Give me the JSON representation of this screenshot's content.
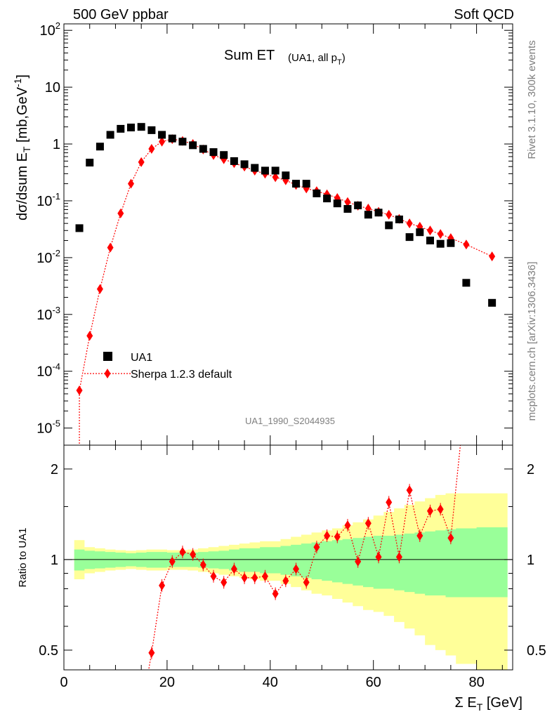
{
  "header": {
    "left": "500 GeV ppbar",
    "right": "Soft QCD"
  },
  "side": {
    "rivet": "Rivet 3.1.10,  300k events",
    "mcplots": "mcplots.cern.ch [arXiv:1306.3436]"
  },
  "analysis_id": "UA1_1990_S2044935",
  "chart_data": [
    {
      "type": "scatter",
      "title": "Sum ET",
      "subtitle": "(UA1, all p_T)",
      "ylabel": "dσ/dsum E_T [mb,GeV^-1]",
      "xlabel": "Σ E_T [GeV]",
      "yscale": "log",
      "xlim": [
        0,
        87
      ],
      "ylim": [
        5e-06,
        130
      ],
      "x_ticks": [
        0,
        20,
        40,
        60,
        80
      ],
      "y_ticks": [
        1e-05,
        0.0001,
        0.001,
        0.01,
        0.1,
        1,
        10,
        100
      ],
      "y_tick_labels": [
        "10^-5",
        "10^-4",
        "10^-3",
        "10^-2",
        "10^-1",
        "1",
        "10",
        "10^2"
      ],
      "legend": {
        "position": "bottom-left",
        "entries": [
          "UA1",
          "Sherpa 1.2.3 default"
        ]
      },
      "series": [
        {
          "name": "UA1",
          "marker": "square",
          "color": "#000000",
          "x": [
            3,
            5,
            7,
            9,
            11,
            13,
            15,
            17,
            19,
            21,
            23,
            25,
            27,
            29,
            31,
            33,
            35,
            37,
            39,
            41,
            43,
            45,
            47,
            49,
            51,
            53,
            55,
            57,
            59,
            61,
            63,
            65,
            67,
            69,
            71,
            73,
            75,
            78,
            83
          ],
          "y": [
            0.033,
            0.47,
            0.9,
            1.45,
            1.85,
            1.95,
            2.0,
            1.75,
            1.45,
            1.25,
            1.1,
            0.95,
            0.82,
            0.72,
            0.64,
            0.5,
            0.44,
            0.38,
            0.34,
            0.34,
            0.28,
            0.2,
            0.2,
            0.135,
            0.11,
            0.09,
            0.072,
            0.083,
            0.057,
            0.062,
            0.037,
            0.047,
            0.023,
            0.028,
            0.02,
            0.0175,
            0.018,
            0.0036,
            0.0016
          ]
        },
        {
          "name": "Sherpa 1.2.3 default",
          "marker": "diamond",
          "color": "#ff0000",
          "line": "dotted",
          "x": [
            3,
            5,
            7,
            9,
            11,
            13,
            15,
            17,
            19,
            21,
            23,
            25,
            27,
            29,
            31,
            33,
            35,
            37,
            39,
            41,
            43,
            45,
            47,
            49,
            51,
            53,
            55,
            57,
            59,
            61,
            63,
            65,
            67,
            69,
            71,
            73,
            75,
            78,
            83
          ],
          "y": [
            4.6e-05,
            0.00042,
            0.0028,
            0.015,
            0.06,
            0.2,
            0.48,
            0.82,
            1.1,
            1.22,
            1.13,
            1.0,
            0.8,
            0.64,
            0.54,
            0.46,
            0.4,
            0.34,
            0.3,
            0.26,
            0.23,
            0.19,
            0.165,
            0.148,
            0.13,
            0.112,
            0.095,
            0.082,
            0.073,
            0.064,
            0.057,
            0.048,
            0.04,
            0.035,
            0.03,
            0.026,
            0.022,
            0.017,
            0.0105
          ]
        }
      ]
    },
    {
      "type": "scatter",
      "ylabel": "Ratio to UA1",
      "xlabel": "Σ E_T [GeV]",
      "yscale": "log",
      "xlim": [
        0,
        87
      ],
      "ylim": [
        0.43,
        2.4
      ],
      "x_ticks": [
        0,
        20,
        40,
        60,
        80
      ],
      "y_ticks": [
        0.5,
        1,
        2
      ],
      "y_tick_labels": [
        "0.5",
        "1",
        "2"
      ],
      "reference_line": 1,
      "bands": {
        "edges": [
          2,
          4,
          6,
          8,
          10,
          12,
          14,
          16,
          18,
          20,
          22,
          24,
          26,
          28,
          30,
          32,
          34,
          36,
          38,
          40,
          42,
          44,
          46,
          48,
          50,
          52,
          54,
          56,
          58,
          60,
          62,
          64,
          66,
          68,
          70,
          72,
          74,
          76,
          80,
          86
        ],
        "green_lo": [
          0.92,
          0.93,
          0.935,
          0.94,
          0.945,
          0.95,
          0.945,
          0.94,
          0.94,
          0.945,
          0.945,
          0.945,
          0.94,
          0.935,
          0.93,
          0.92,
          0.91,
          0.91,
          0.9,
          0.9,
          0.89,
          0.88,
          0.87,
          0.86,
          0.85,
          0.84,
          0.83,
          0.82,
          0.81,
          0.8,
          0.8,
          0.79,
          0.78,
          0.77,
          0.76,
          0.76,
          0.75,
          0.75,
          0.75
        ],
        "green_hi": [
          1.08,
          1.07,
          1.065,
          1.06,
          1.055,
          1.05,
          1.055,
          1.06,
          1.06,
          1.055,
          1.055,
          1.055,
          1.06,
          1.065,
          1.07,
          1.08,
          1.09,
          1.09,
          1.1,
          1.1,
          1.11,
          1.12,
          1.13,
          1.14,
          1.15,
          1.16,
          1.17,
          1.18,
          1.19,
          1.2,
          1.2,
          1.21,
          1.22,
          1.23,
          1.24,
          1.25,
          1.26,
          1.27,
          1.28
        ],
        "yellow_lo": [
          0.86,
          0.9,
          0.91,
          0.92,
          0.925,
          0.93,
          0.925,
          0.92,
          0.92,
          0.925,
          0.925,
          0.92,
          0.91,
          0.9,
          0.89,
          0.88,
          0.87,
          0.86,
          0.85,
          0.85,
          0.83,
          0.81,
          0.79,
          0.77,
          0.76,
          0.74,
          0.72,
          0.7,
          0.68,
          0.67,
          0.65,
          0.62,
          0.59,
          0.56,
          0.52,
          0.5,
          0.48,
          0.45,
          0.43
        ],
        "yellow_hi": [
          1.16,
          1.1,
          1.09,
          1.08,
          1.075,
          1.07,
          1.075,
          1.08,
          1.08,
          1.075,
          1.075,
          1.08,
          1.09,
          1.1,
          1.11,
          1.12,
          1.13,
          1.14,
          1.15,
          1.15,
          1.17,
          1.19,
          1.21,
          1.23,
          1.25,
          1.27,
          1.3,
          1.33,
          1.36,
          1.4,
          1.44,
          1.48,
          1.52,
          1.56,
          1.6,
          1.64,
          1.66,
          1.66,
          1.66
        ]
      },
      "series": [
        {
          "name": "Sherpa 1.2.3 default / UA1",
          "marker": "diamond",
          "color": "#ff0000",
          "line": "dotted",
          "x": [
            17,
            19,
            21,
            23,
            25,
            27,
            29,
            31,
            33,
            35,
            37,
            39,
            41,
            43,
            45,
            47,
            49,
            51,
            53,
            55,
            57,
            59,
            61,
            63,
            65,
            67,
            69,
            71,
            73,
            75
          ],
          "y": [
            0.49,
            0.82,
            0.985,
            1.06,
            1.04,
            0.96,
            0.88,
            0.84,
            0.93,
            0.87,
            0.87,
            0.88,
            0.77,
            0.85,
            0.93,
            0.84,
            1.1,
            1.2,
            1.19,
            1.3,
            0.985,
            1.32,
            1.02,
            1.55,
            1.02,
            1.7,
            1.2,
            1.45,
            1.47,
            1.18
          ]
        }
      ]
    }
  ]
}
